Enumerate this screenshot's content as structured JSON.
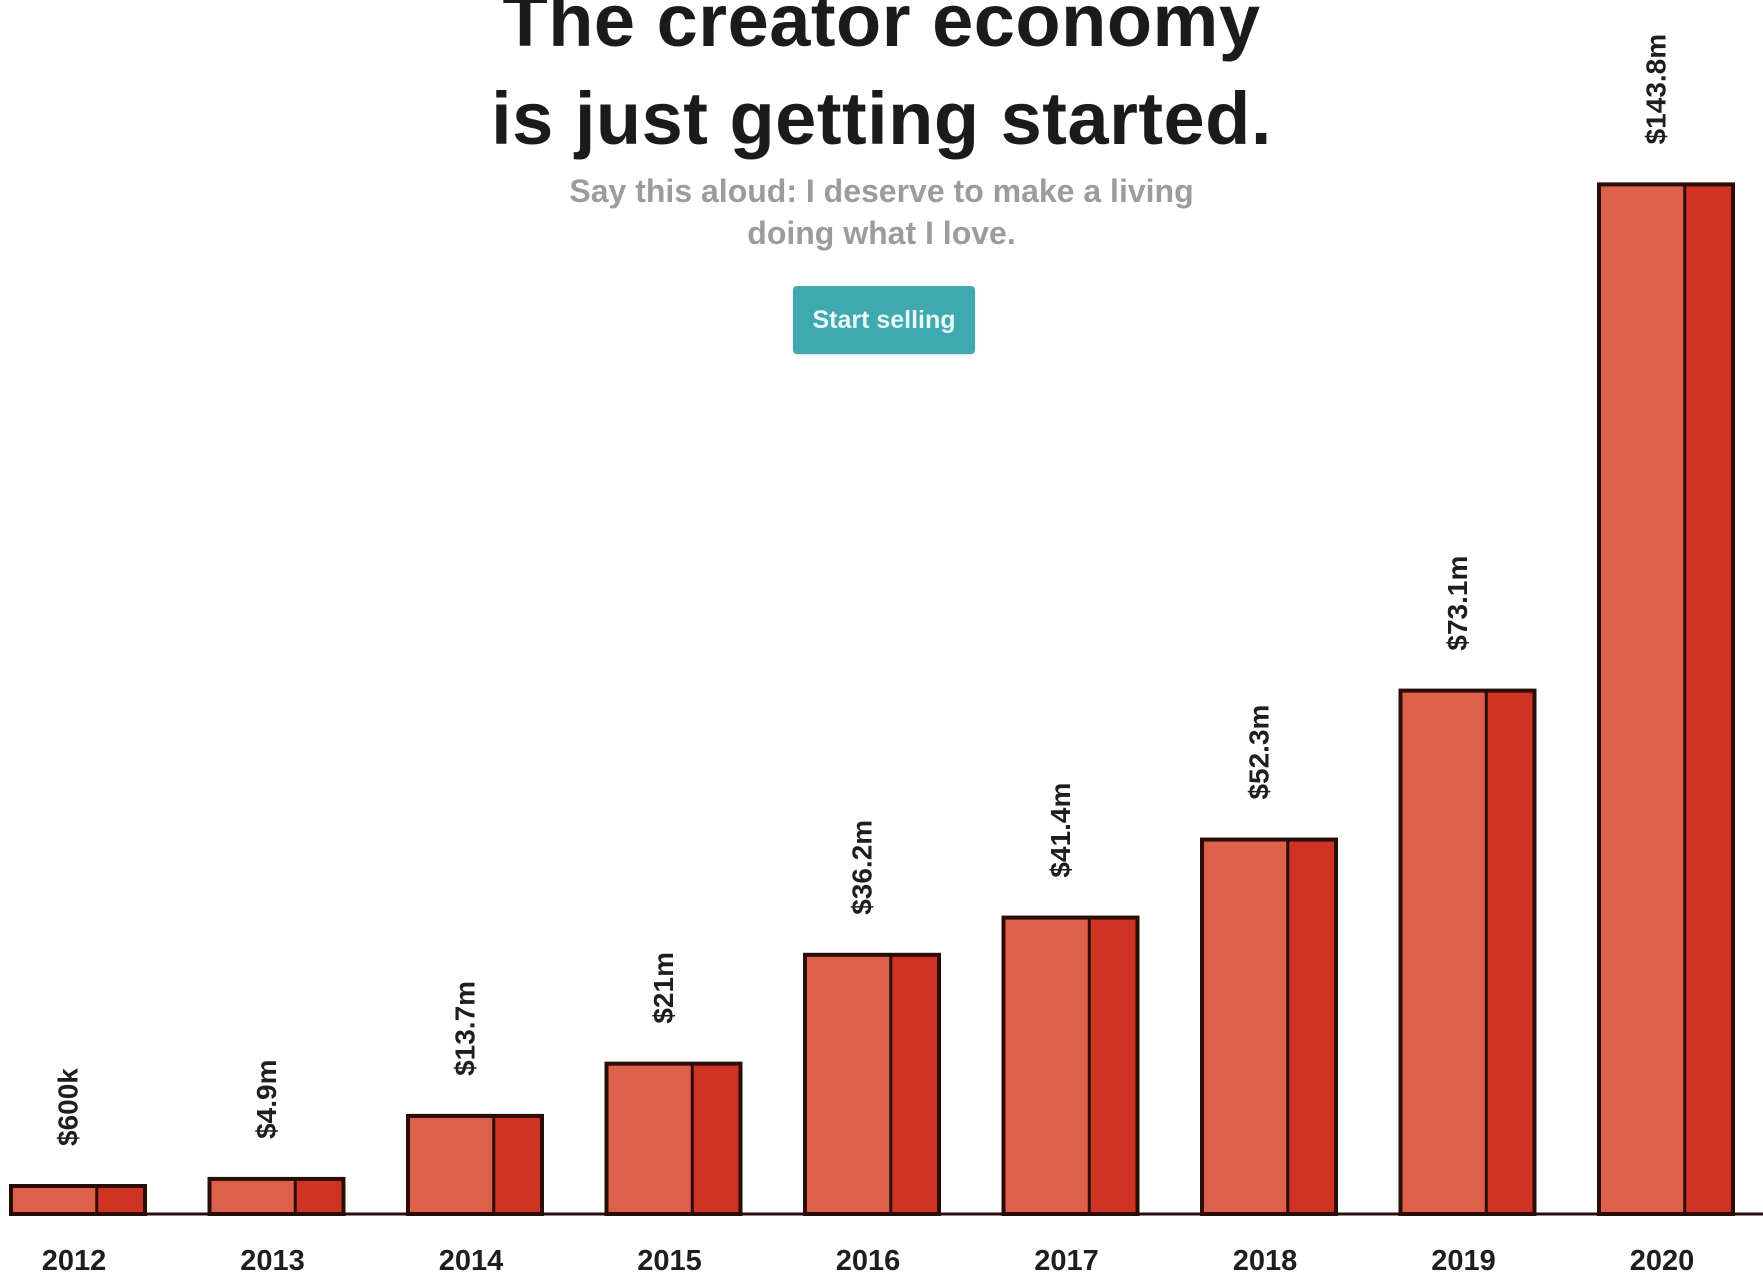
{
  "hero": {
    "headline_line1": "The creator economy",
    "headline_line2": "is just getting started.",
    "subhead_line1": "Say this aloud: I deserve to make a living",
    "subhead_line2": "doing what I love.",
    "cta_label": "Start selling"
  },
  "colors": {
    "bar_light": "#dd604b",
    "bar_dark": "#cf3324",
    "bar_outline": "#2a0d08",
    "cta": "#3ea9ae"
  },
  "chart_data": {
    "type": "bar",
    "title": "",
    "xlabel": "",
    "ylabel": "",
    "categories": [
      "2012",
      "2013",
      "2014",
      "2015",
      "2016",
      "2017",
      "2018",
      "2019",
      "2020"
    ],
    "values": [
      0.6,
      4.9,
      13.7,
      21,
      36.2,
      41.4,
      52.3,
      73.1,
      143.8
    ],
    "value_labels": [
      "$600k",
      "$4.9m",
      "$13.7m",
      "$21m",
      "$36.2m",
      "$41.4m",
      "$52.3m",
      "$73.1m",
      "$143.8m"
    ],
    "units": "USD millions",
    "axis_visible": false,
    "grid": false,
    "legend": "none"
  }
}
